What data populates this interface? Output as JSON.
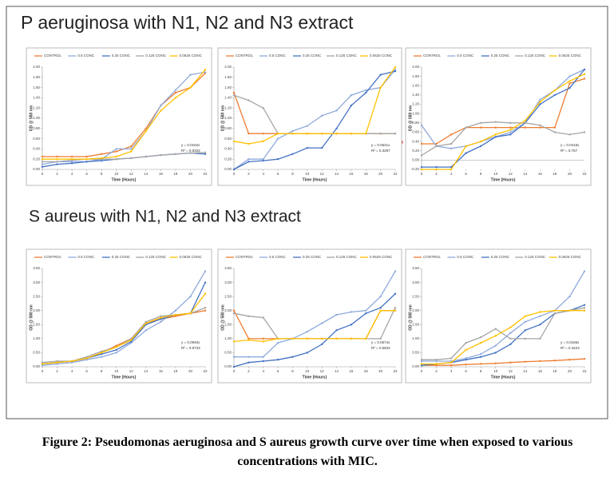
{
  "sections": [
    "P aeruginosa with N1, N2 and N3 extract",
    "S aureus with N1, N2 and N3 extract"
  ],
  "caption": "Figure 2: Pseudomonas aeruginosa and S aureus growth curve over time when exposed to various concentrations with MIC.",
  "chart_data": [
    {
      "type": "line",
      "y_label": "OD @ 580 nm",
      "x_label": "Time (Hours)",
      "x": [
        0,
        2,
        4,
        6,
        8,
        10,
        12,
        14,
        16,
        18,
        20,
        22
      ],
      "xlim": [
        0,
        22
      ],
      "xticks": [
        0,
        2,
        4,
        6,
        8,
        10,
        12,
        14,
        16,
        18,
        20,
        22
      ],
      "ylim": [
        0,
        2
      ],
      "yticks": [
        {
          "value": 0,
          "label": "0.00"
        },
        {
          "value": 0.2,
          "label": "0.20"
        },
        {
          "value": 0.4,
          "label": "0.40"
        },
        {
          "value": 0.6,
          "label": "0.60"
        },
        {
          "value": 0.8,
          "label": "0.80"
        },
        {
          "value": 1,
          "label": "1.00"
        },
        {
          "value": 1.2,
          "label": "1.20"
        },
        {
          "value": 1.4,
          "label": "1.40"
        },
        {
          "value": 1.6,
          "label": "1.60"
        },
        {
          "value": 1.8,
          "label": "1.80"
        },
        {
          "value": 2,
          "label": "2.00"
        }
      ],
      "annotations": [
        "y = 0.0162x",
        "R² = 0.8333"
      ],
      "series": [
        {
          "name": "CONTROL",
          "color": "#ed7d31",
          "values": [
            0.25,
            0.25,
            0.25,
            0.25,
            0.3,
            0.35,
            0.45,
            0.8,
            1.25,
            1.5,
            1.6,
            1.88
          ]
        },
        {
          "name": "0.5 CONC",
          "color": "#8faadc",
          "values": [
            0.1,
            0.15,
            0.15,
            0.15,
            0.2,
            0.4,
            0.4,
            0.75,
            1.25,
            1.55,
            1.85,
            1.9
          ]
        },
        {
          "name": "0.25 CONC",
          "color": "#4472c4",
          "values": [
            0.05,
            0.1,
            0.12,
            0.15,
            0.17,
            0.2,
            0.22,
            0.25,
            0.28,
            0.3,
            0.32,
            0.3
          ]
        },
        {
          "name": "0.125 CONC",
          "color": "#a5a5a5",
          "values": [
            0.15,
            0.15,
            0.18,
            0.2,
            0.2,
            0.2,
            0.22,
            0.25,
            0.28,
            0.3,
            0.32,
            0.33
          ]
        },
        {
          "name": "0.0625 CONC",
          "color": "#ffc000",
          "values": [
            0.2,
            0.2,
            0.2,
            0.2,
            0.22,
            0.25,
            0.35,
            0.75,
            1.15,
            1.4,
            1.6,
            1.95
          ]
        }
      ]
    },
    {
      "type": "line",
      "y_label": "OD @ 580 nm",
      "x_label": "Time (Hours)",
      "x": [
        0,
        2,
        4,
        6,
        8,
        10,
        12,
        14,
        16,
        18,
        20,
        22
      ],
      "xlim": [
        0,
        22
      ],
      "xticks": [
        0,
        2,
        4,
        6,
        8,
        10,
        12,
        14,
        16,
        18,
        20,
        22
      ],
      "ylim": [
        0,
        2
      ],
      "yticks": [
        {
          "value": 0,
          "label": "0.00"
        },
        {
          "value": 0.2,
          "label": "0.20"
        },
        {
          "value": 0.4,
          "label": "0.40"
        },
        {
          "value": 0.6,
          "label": "0.60"
        },
        {
          "value": 0.8,
          "label": "0.80"
        },
        {
          "value": 1,
          "label": "1.00"
        },
        {
          "value": 1.2,
          "label": "1.20"
        },
        {
          "value": 1.4,
          "label": "1.40"
        },
        {
          "value": 1.6,
          "label": "1.60"
        },
        {
          "value": 1.8,
          "label": "1.80"
        },
        {
          "value": 2,
          "label": "2.00"
        }
      ],
      "annotations": [
        "y = 0.0641x",
        "R² = 0.3287"
      ],
      "series": [
        {
          "name": "CONTROL",
          "color": "#ed7d31",
          "values": [
            1.5,
            0.7,
            0.7,
            0.7,
            0.7,
            0.7,
            0.7,
            0.7,
            0.7,
            0.7,
            0.7,
            0.7
          ]
        },
        {
          "name": "0.5 CONC",
          "color": "#8faadc",
          "values": [
            0,
            0.2,
            0.2,
            0.6,
            0.75,
            0.85,
            1.05,
            1.15,
            1.45,
            1.55,
            1.6,
            1.95
          ]
        },
        {
          "name": "0.25 CONC",
          "color": "#4472c4",
          "values": [
            0,
            0.15,
            0.17,
            0.2,
            0.3,
            0.42,
            0.42,
            0.8,
            1.25,
            1.5,
            1.85,
            1.92
          ]
        },
        {
          "name": "0.125 CONC",
          "color": "#a5a5a5",
          "values": [
            1.45,
            1.35,
            1.2,
            0.7,
            0.7,
            0.7,
            0.7,
            0.7,
            0.7,
            0.7,
            0.7,
            0.7
          ]
        },
        {
          "name": "0.0625 CONC",
          "color": "#ffc000",
          "values": [
            0.55,
            0.5,
            0.55,
            0.7,
            0.7,
            0.7,
            0.7,
            0.7,
            0.7,
            0.7,
            1.6,
            2.0
          ]
        }
      ]
    },
    {
      "type": "line",
      "y_label": "OD @ 580 nm",
      "x_label": "Time (Hours)",
      "x": [
        0,
        2,
        4,
        6,
        8,
        10,
        12,
        14,
        16,
        18,
        20,
        22
      ],
      "xlim": [
        0,
        22
      ],
      "xticks": [
        0,
        2,
        4,
        6,
        8,
        10,
        12,
        14,
        16,
        18,
        20,
        22
      ],
      "ylim": [
        -0.2,
        2
      ],
      "yticks": [
        {
          "value": -0.2,
          "label": "-0.20"
        },
        {
          "value": 0,
          "label": "0.00"
        },
        {
          "value": 0.2,
          "label": "0.20"
        },
        {
          "value": 0.4,
          "label": "0.40"
        },
        {
          "value": 0.6,
          "label": "0.60"
        },
        {
          "value": 0.8,
          "label": "0.80"
        },
        {
          "value": 1,
          "label": "1.00"
        },
        {
          "value": 1.2,
          "label": "1.20"
        },
        {
          "value": 1.4,
          "label": "1.40"
        },
        {
          "value": 1.6,
          "label": "1.60"
        },
        {
          "value": 1.8,
          "label": "1.80"
        },
        {
          "value": 2,
          "label": "2.00"
        }
      ],
      "annotations": [
        "y = 0.0416x",
        "R² = 0.757"
      ],
      "series": [
        {
          "name": "CONTROL",
          "color": "#ed7d31",
          "values": [
            0.35,
            0.35,
            0.55,
            0.7,
            0.7,
            0.7,
            0.7,
            0.7,
            0.7,
            0.7,
            1.65,
            1.75
          ]
        },
        {
          "name": "0.5 CONC",
          "color": "#8faadc",
          "values": [
            0.75,
            0.3,
            0.25,
            0.3,
            0.4,
            0.5,
            0.6,
            0.8,
            1.3,
            1.5,
            1.8,
            1.95
          ]
        },
        {
          "name": "0.25 CONC",
          "color": "#4472c4",
          "values": [
            -0.15,
            -0.15,
            -0.15,
            0.15,
            0.3,
            0.5,
            0.55,
            0.8,
            1.2,
            1.4,
            1.55,
            1.95
          ]
        },
        {
          "name": "0.125 CONC",
          "color": "#a5a5a5",
          "values": [
            0.1,
            0.3,
            0.35,
            0.7,
            0.8,
            0.82,
            0.8,
            0.8,
            0.75,
            0.6,
            0.55,
            0.6
          ]
        },
        {
          "name": "0.0625 CONC",
          "color": "#ffc000",
          "values": [
            -0.2,
            -0.2,
            -0.2,
            0.3,
            0.4,
            0.55,
            0.65,
            0.85,
            1.25,
            1.5,
            1.7,
            1.85
          ]
        }
      ]
    },
    {
      "type": "line",
      "y_label": "OD @ 580 nm",
      "x_label": "Time (Hours)",
      "x": [
        0,
        2,
        4,
        6,
        8,
        10,
        12,
        14,
        16,
        18,
        20,
        22
      ],
      "xlim": [
        0,
        22
      ],
      "xticks": [
        0,
        2,
        4,
        6,
        8,
        10,
        12,
        14,
        16,
        18,
        20,
        22
      ],
      "ylim": [
        0,
        3.5
      ],
      "yticks": [
        {
          "value": 0,
          "label": "0.00"
        },
        {
          "value": 0.5,
          "label": "0.50"
        },
        {
          "value": 1,
          "label": "1.00"
        },
        {
          "value": 1.5,
          "label": "1.50"
        },
        {
          "value": 2,
          "label": "2.00"
        },
        {
          "value": 2.5,
          "label": "2.50"
        },
        {
          "value": 3,
          "label": "3.00"
        },
        {
          "value": 3.5,
          "label": "3.50"
        }
      ],
      "annotations": [
        "y = 0.0940x",
        "R² = 0.9733"
      ],
      "series": [
        {
          "name": "CONTROL",
          "color": "#ed7d31",
          "values": [
            0.1,
            0.15,
            0.2,
            0.3,
            0.5,
            0.75,
            1.0,
            1.55,
            1.7,
            1.8,
            1.9,
            2.0
          ]
        },
        {
          "name": "0.5 CONC",
          "color": "#8faadc",
          "values": [
            0.05,
            0.1,
            0.15,
            0.25,
            0.35,
            0.5,
            0.85,
            1.3,
            1.6,
            2.0,
            2.5,
            3.4
          ]
        },
        {
          "name": "0.25 CONC",
          "color": "#4472c4",
          "values": [
            0.1,
            0.15,
            0.2,
            0.3,
            0.45,
            0.6,
            0.9,
            1.5,
            1.7,
            1.85,
            1.9,
            3.0
          ]
        },
        {
          "name": "0.125 CONC",
          "color": "#a5a5a5",
          "values": [
            0.15,
            0.2,
            0.2,
            0.35,
            0.55,
            0.7,
            1.0,
            1.6,
            1.8,
            1.85,
            1.9,
            2.1
          ]
        },
        {
          "name": "0.0625 CONC",
          "color": "#ffc000",
          "values": [
            0.1,
            0.15,
            0.2,
            0.3,
            0.5,
            0.7,
            0.95,
            1.55,
            1.75,
            1.85,
            1.9,
            2.6
          ]
        }
      ]
    },
    {
      "type": "line",
      "y_label": "OD @ 580 nm",
      "x_label": "Time (Hours)",
      "x": [
        0,
        2,
        4,
        6,
        8,
        10,
        12,
        14,
        16,
        18,
        20,
        22
      ],
      "xlim": [
        0,
        22
      ],
      "xticks": [
        0,
        2,
        4,
        6,
        8,
        10,
        12,
        14,
        16,
        18,
        20,
        22
      ],
      "ylim": [
        0,
        3.5
      ],
      "yticks": [
        {
          "value": 0,
          "label": "0.00"
        },
        {
          "value": 0.5,
          "label": "0.50"
        },
        {
          "value": 1,
          "label": "1.00"
        },
        {
          "value": 1.5,
          "label": "1.50"
        },
        {
          "value": 2,
          "label": "2.00"
        },
        {
          "value": 2.5,
          "label": "2.50"
        },
        {
          "value": 3,
          "label": "3.00"
        },
        {
          "value": 3.5,
          "label": "3.50"
        }
      ],
      "annotations": [
        "y = 0.0674x",
        "R² = 0.5833"
      ],
      "series": [
        {
          "name": "CONTROL",
          "color": "#ed7d31",
          "values": [
            2.0,
            1.0,
            1.0,
            1.0,
            1.0,
            1.0,
            1.0,
            1.0,
            1.0,
            1.0,
            2.0,
            2.0
          ]
        },
        {
          "name": "0.5 CONC",
          "color": "#8faadc",
          "values": [
            0.35,
            0.35,
            0.35,
            0.85,
            1.0,
            1.25,
            1.55,
            1.85,
            1.95,
            2.0,
            2.5,
            3.4
          ]
        },
        {
          "name": "0.25 CONC",
          "color": "#4472c4",
          "values": [
            0,
            0.15,
            0.2,
            0.25,
            0.35,
            0.5,
            0.8,
            1.3,
            1.5,
            1.9,
            2.1,
            2.6
          ]
        },
        {
          "name": "0.125 CONC",
          "color": "#a5a5a5",
          "values": [
            1.9,
            1.8,
            1.75,
            1.0,
            1.0,
            1.0,
            1.0,
            1.0,
            1.0,
            1.0,
            1.0,
            2.1
          ]
        },
        {
          "name": "0.0625 CONC",
          "color": "#ffc000",
          "values": [
            0.9,
            0.95,
            0.9,
            1.0,
            1.0,
            1.0,
            1.0,
            1.0,
            1.0,
            1.0,
            2.0,
            2.0
          ]
        }
      ]
    },
    {
      "type": "line",
      "y_label": "OD @ 580 nm",
      "x_label": "Time (Hours)",
      "x": [
        0,
        2,
        4,
        6,
        8,
        10,
        12,
        14,
        16,
        18,
        20,
        22
      ],
      "xlim": [
        0,
        22
      ],
      "xticks": [
        0,
        2,
        4,
        6,
        8,
        10,
        12,
        14,
        16,
        18,
        20,
        22
      ],
      "ylim": [
        0,
        3.5
      ],
      "yticks": [
        {
          "value": 0,
          "label": "0.00"
        },
        {
          "value": 0.5,
          "label": "0.50"
        },
        {
          "value": 1,
          "label": "1.00"
        },
        {
          "value": 1.5,
          "label": "1.50"
        },
        {
          "value": 2,
          "label": "2.00"
        },
        {
          "value": 2.5,
          "label": "2.50"
        },
        {
          "value": 3,
          "label": "3.00"
        },
        {
          "value": 3.5,
          "label": "3.50"
        }
      ],
      "annotations": [
        "y = 0.0166x",
        "R² = 0.3423"
      ],
      "series": [
        {
          "name": "CONTROL",
          "color": "#ed7d31",
          "values": [
            0.05,
            0.05,
            0.05,
            0.08,
            0.1,
            0.12,
            0.15,
            0.18,
            0.2,
            0.22,
            0.25,
            0.28
          ]
        },
        {
          "name": "0.5 CONC",
          "color": "#8faadc",
          "values": [
            0.2,
            0.2,
            0.2,
            0.3,
            0.45,
            0.75,
            1.2,
            1.6,
            1.8,
            2.0,
            2.5,
            3.4
          ]
        },
        {
          "name": "0.25 CONC",
          "color": "#4472c4",
          "values": [
            0.05,
            0.1,
            0.15,
            0.25,
            0.35,
            0.5,
            0.8,
            1.3,
            1.5,
            1.9,
            2.0,
            2.2
          ]
        },
        {
          "name": "0.125 CONC",
          "color": "#a5a5a5",
          "values": [
            0.25,
            0.25,
            0.3,
            0.85,
            1.05,
            1.35,
            1.0,
            1.0,
            1.0,
            1.9,
            2.0,
            2.1
          ]
        },
        {
          "name": "0.0625 CONC",
          "color": "#ffc000",
          "values": [
            0.1,
            0.1,
            0.15,
            0.6,
            0.85,
            1.1,
            1.4,
            1.8,
            1.95,
            2.0,
            2.0,
            2.0
          ]
        }
      ]
    }
  ]
}
